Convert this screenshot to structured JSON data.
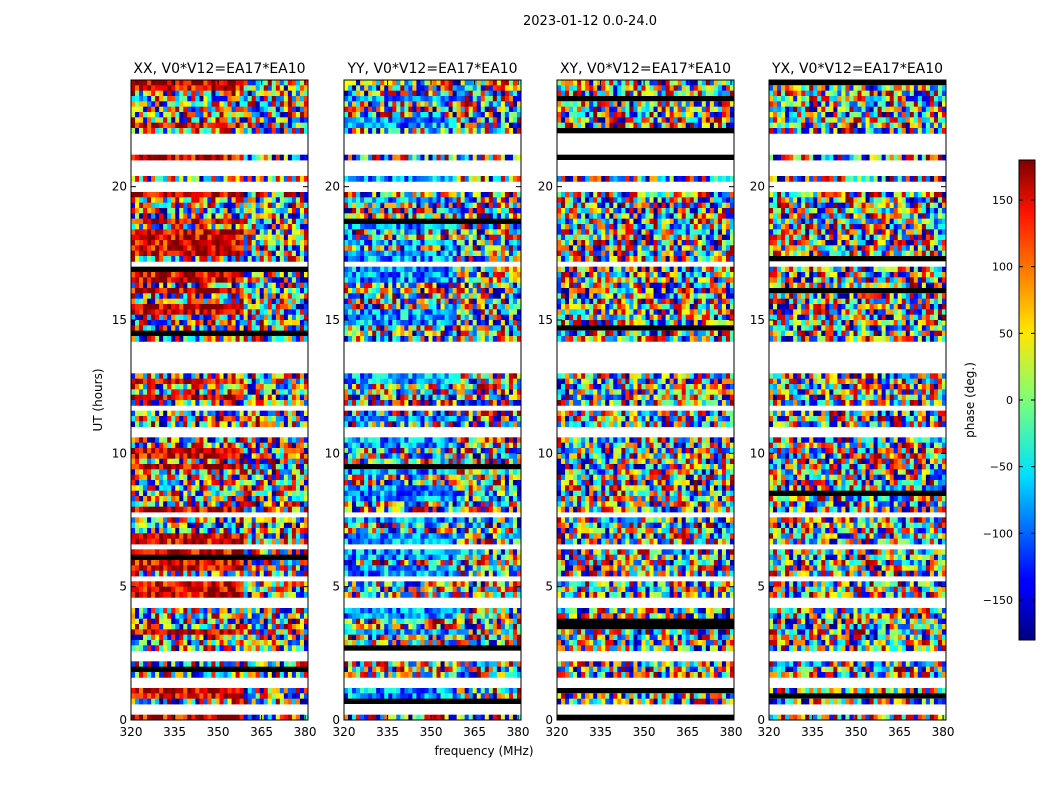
{
  "figure": {
    "suptitle": "2023-01-12 0.0-24.0",
    "xlabel": "frequency (MHz)",
    "ylabel": "UT (hours)",
    "colorbar_label": "phase (deg.)"
  },
  "chart_data": {
    "type": "heatmap",
    "xlim": [
      320,
      381
    ],
    "ylim": [
      0,
      24
    ],
    "x_ticks": [
      320,
      335,
      350,
      365,
      380
    ],
    "y_ticks": [
      0,
      5,
      10,
      15,
      20
    ],
    "colorbar": {
      "range": [
        -180,
        180
      ],
      "ticks": [
        150,
        100,
        50,
        0,
        -50,
        -100,
        -150
      ],
      "tick_labels": [
        "150",
        "100",
        "50",
        "0",
        "−50",
        "−100",
        "−150"
      ],
      "colormap": "jet"
    },
    "flagged_rows_hours": [
      [
        21.3,
        22.0
      ],
      [
        20.5,
        21.0
      ],
      [
        19.85,
        20.1
      ],
      [
        17.0,
        17.2
      ],
      [
        13.6,
        14.1
      ],
      [
        13.0,
        13.6
      ],
      [
        11.6,
        11.8
      ],
      [
        10.6,
        10.9
      ],
      [
        8.75,
        8.85
      ],
      [
        7.6,
        7.8
      ],
      [
        6.4,
        6.6
      ],
      [
        5.2,
        5.4
      ],
      [
        4.3,
        4.5
      ],
      [
        2.7,
        2.8
      ],
      [
        2.3,
        2.5
      ],
      [
        1.2,
        1.5
      ],
      [
        0.3,
        0.5
      ]
    ],
    "panels": [
      {
        "title": "XX, V0*V12=EA17*EA10",
        "dominant_phase_deg": 150
      },
      {
        "title": "YY, V0*V12=EA17*EA10",
        "dominant_phase_deg": -80
      },
      {
        "title": "XY, V0*V12=EA17*EA10",
        "dominant_phase_deg": null
      },
      {
        "title": "YX, V0*V12=EA17*EA10",
        "dominant_phase_deg": null
      }
    ]
  }
}
